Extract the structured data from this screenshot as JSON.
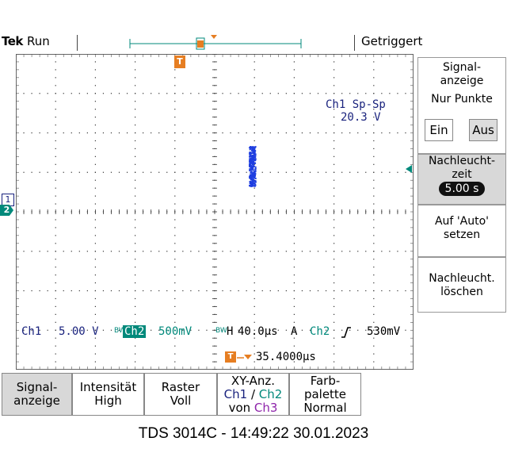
{
  "status": {
    "brand": "Tek",
    "mode": "Run",
    "trigger_state": "Getriggert"
  },
  "measurement": {
    "label": "Ch1 Sp-Sp",
    "value": "20.3 V"
  },
  "markers": {
    "trigger_position": "T",
    "ch1": "1",
    "ch2": "2"
  },
  "readout": {
    "ch1_label": "Ch1",
    "ch1_scale": "5.00 V",
    "ch2_label": "Ch2",
    "ch2_scale": "500mV",
    "time_label": "H",
    "time_scale": "40.0µs",
    "trig_mode": "A",
    "trig_source": "Ch2",
    "trig_slope": "μ",
    "trig_level": "530mV",
    "trig_offset": "35.4000µs"
  },
  "side_menu": {
    "title_line1": "Signal-",
    "title_line2": "anzeige",
    "points_label": "Nur Punkte",
    "on_label": "Ein",
    "off_label": "Aus",
    "persist_line1": "Nachleucht-",
    "persist_line2": "zeit",
    "persist_value": "5.00 s",
    "auto_line1": "Auf 'Auto'",
    "auto_line2": "setzen",
    "clear_line1": "Nachleucht.",
    "clear_line2": "löschen"
  },
  "bottom_menu": {
    "display_line1": "Signal-",
    "display_line2": "anzeige",
    "intensity_line1": "Intensität",
    "intensity_line2": "High",
    "grid_line1": "Raster",
    "grid_line2": "Voll",
    "xy_line1": "XY-Anz.",
    "xy_ch1": "Ch1",
    "xy_sep": " / ",
    "xy_ch2": "Ch2",
    "xy_von": "von ",
    "xy_ch3": "Ch3",
    "palette_line1": "Farb-",
    "palette_line2": "palette",
    "palette_line3": "Normal"
  },
  "footer": "TDS 3014C - 14:49:22   30.01.2023",
  "colors": {
    "trace": "#1f3fe0",
    "trigger_marker": "#e67e22",
    "ch2_marker": "#00897b",
    "ch1_marker": "#1a237e"
  },
  "icons": {
    "trigger": "trigger-marker-icon",
    "slope": "rising-edge-icon"
  }
}
